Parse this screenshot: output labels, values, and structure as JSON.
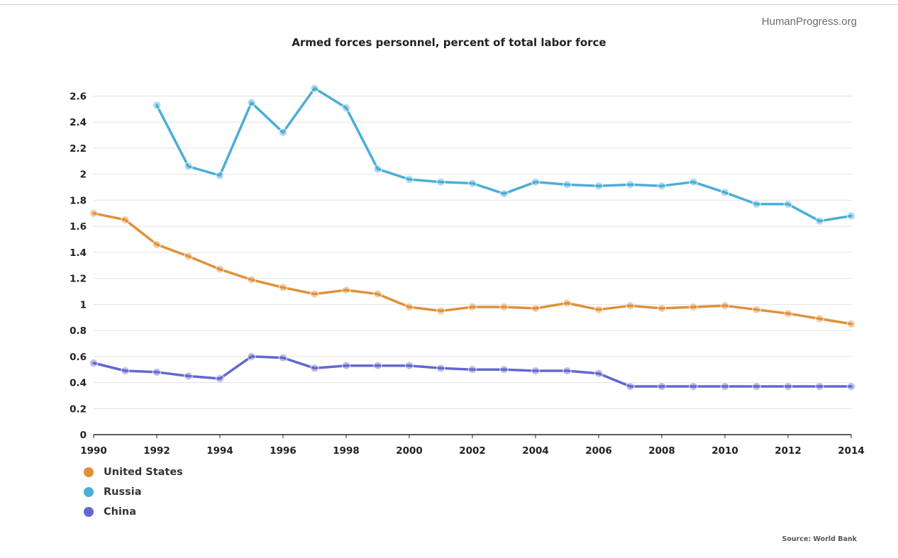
{
  "brand": "HumanProgress.org",
  "source": "Source: World Bank",
  "chart_data": {
    "type": "line",
    "title": "Armed forces personnel, percent of total labor force",
    "xlabel": "",
    "ylabel": "",
    "xlim": [
      1990,
      2014
    ],
    "ylim": [
      0,
      2.6
    ],
    "x_ticks": [
      "1990",
      "1992",
      "1994",
      "1996",
      "1998",
      "2000",
      "2002",
      "2004",
      "2006",
      "2008",
      "2010",
      "2012",
      "2014"
    ],
    "y_ticks": [
      "0",
      "0.2",
      "0.4",
      "0.6",
      "0.8",
      "1",
      "1.2",
      "1.4",
      "1.6",
      "1.8",
      "2",
      "2.2",
      "2.4",
      "2.6"
    ],
    "grid": true,
    "legend_position": "bottom-left",
    "x": [
      1990,
      1991,
      1992,
      1993,
      1994,
      1995,
      1996,
      1997,
      1998,
      1999,
      2000,
      2001,
      2002,
      2003,
      2004,
      2005,
      2006,
      2007,
      2008,
      2009,
      2010,
      2011,
      2012,
      2013,
      2014
    ],
    "series": [
      {
        "name": "United States",
        "color": "#e0903a",
        "values": [
          1.7,
          1.65,
          1.46,
          1.37,
          1.27,
          1.19,
          1.13,
          1.08,
          1.11,
          1.08,
          0.98,
          0.95,
          0.98,
          0.98,
          0.97,
          1.01,
          0.96,
          0.99,
          0.97,
          0.98,
          0.99,
          0.96,
          0.93,
          0.89,
          0.85
        ]
      },
      {
        "name": "Russia",
        "color": "#4aaed8",
        "values": [
          null,
          null,
          2.53,
          2.06,
          1.99,
          2.55,
          2.32,
          2.66,
          2.51,
          2.04,
          1.96,
          1.94,
          1.93,
          1.85,
          1.94,
          1.92,
          1.91,
          1.92,
          1.91,
          1.94,
          1.86,
          1.77,
          1.77,
          1.64,
          1.68
        ]
      },
      {
        "name": "China",
        "color": "#6268cf",
        "values": [
          0.55,
          0.49,
          0.48,
          0.45,
          0.43,
          0.6,
          0.59,
          0.51,
          0.53,
          0.53,
          0.53,
          0.51,
          0.5,
          0.5,
          0.49,
          0.49,
          0.47,
          0.37,
          0.37,
          0.37,
          0.37,
          0.37,
          0.37,
          0.37,
          0.37
        ]
      }
    ]
  }
}
